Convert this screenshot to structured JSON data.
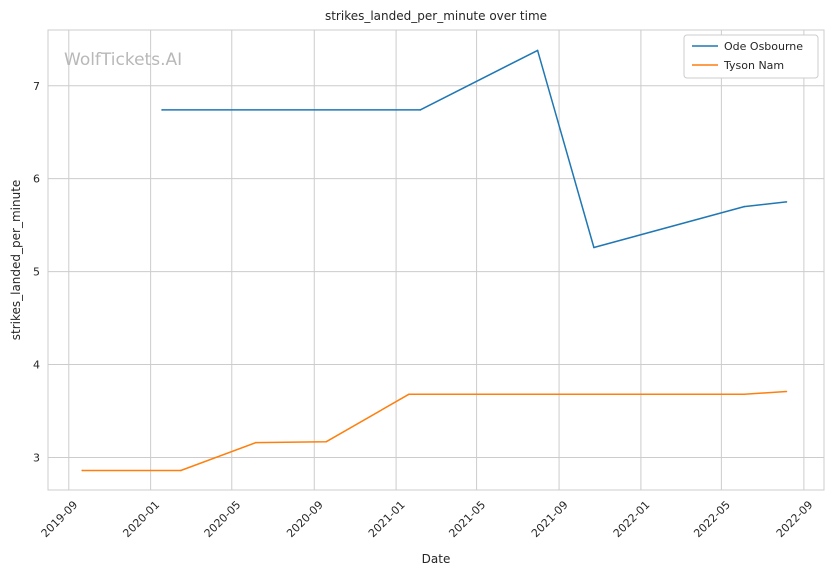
{
  "watermark": "WolfTickets.AI",
  "chart_data": {
    "type": "line",
    "title": "strikes_landed_per_minute over time",
    "xlabel": "Date",
    "ylabel": "strikes_landed_per_minute",
    "xlim": [
      "2019-08-01",
      "2022-10-01"
    ],
    "ylim": [
      2.65,
      7.6
    ],
    "x_ticks": [
      "2019-09",
      "2020-01",
      "2020-05",
      "2020-09",
      "2021-01",
      "2021-05",
      "2021-09",
      "2022-01",
      "2022-05",
      "2022-09"
    ],
    "y_ticks": [
      3,
      4,
      5,
      6,
      7
    ],
    "grid": true,
    "legend_position": "top-right",
    "series": [
      {
        "name": "Ode Osbourne",
        "color": "#1f77b4",
        "x": [
          "2020-01-18",
          "2021-02-06",
          "2021-07-31",
          "2021-10-23",
          "2022-06-04",
          "2022-08-06"
        ],
        "y": [
          6.74,
          6.74,
          7.38,
          5.26,
          5.7,
          5.75
        ]
      },
      {
        "name": "Tyson Nam",
        "color": "#ff7f0e",
        "x": [
          "2019-09-21",
          "2020-02-15",
          "2020-06-06",
          "2020-09-19",
          "2021-01-20",
          "2021-09-01",
          "2022-06-04",
          "2022-08-06"
        ],
        "y": [
          2.86,
          2.86,
          3.16,
          3.17,
          3.68,
          3.68,
          3.68,
          3.71
        ]
      }
    ]
  }
}
